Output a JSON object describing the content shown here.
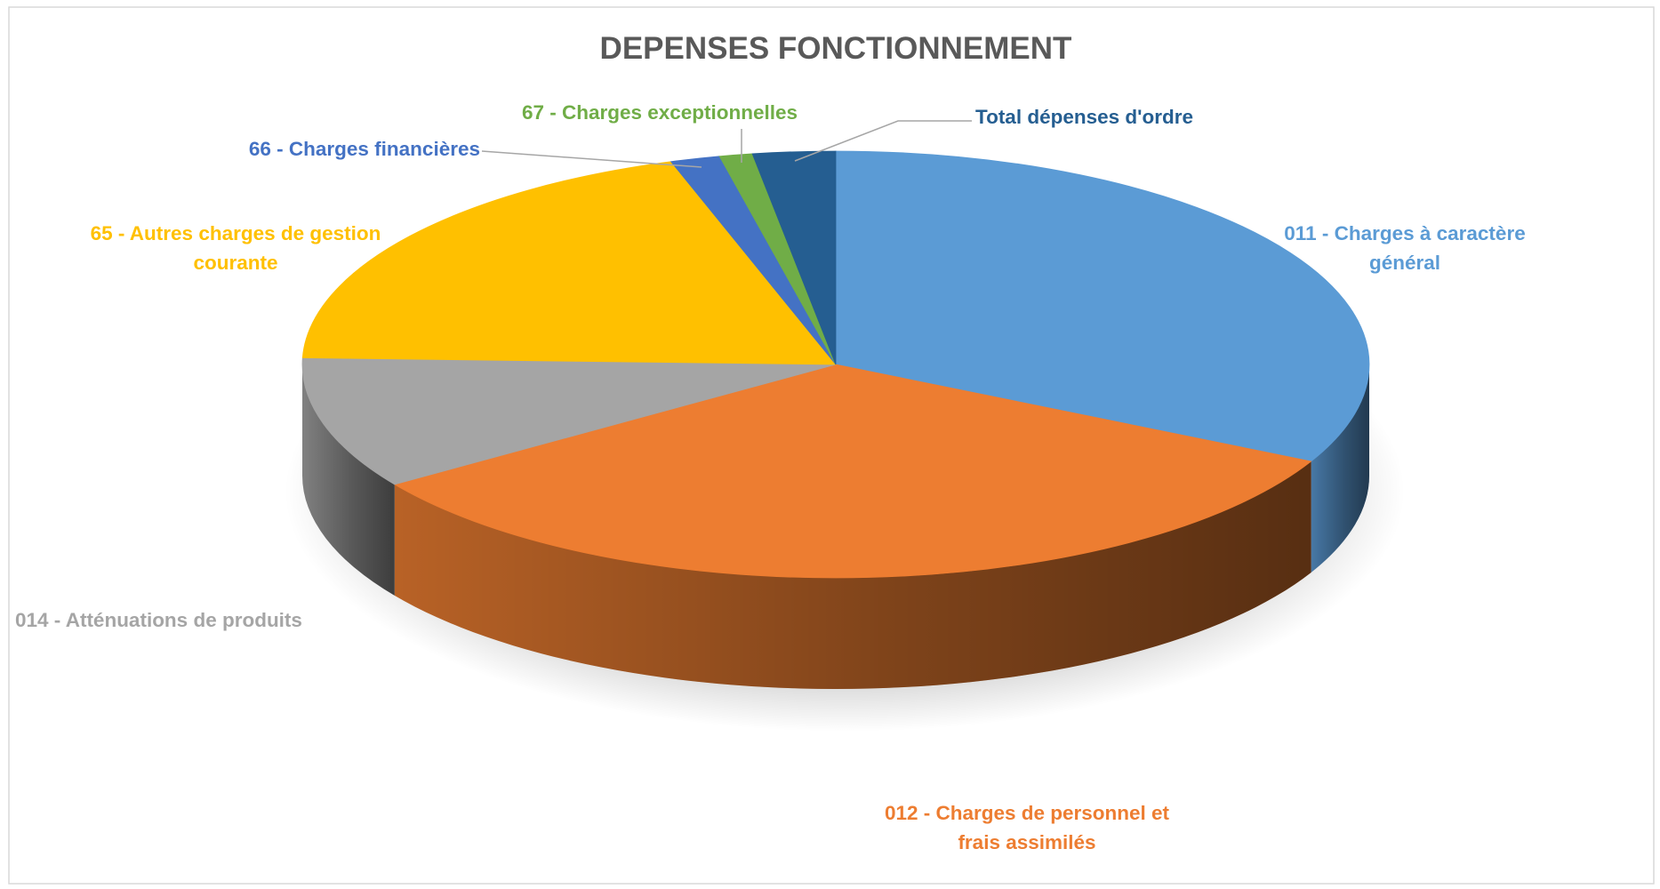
{
  "chart_data": {
    "type": "pie",
    "title": "DEPENSES FONCTIONNEMENT",
    "categories": [
      "011 - Charges à caractère général",
      "012 - Charges de personnel et frais assimilés",
      "014 - Atténuations de produits",
      "65 - Autres charges de gestion courante",
      "66 - Charges financières",
      "67 - Charges exceptionnelles",
      "Total dépenses d'ordre"
    ],
    "values": [
      32.5,
      33.0,
      10.0,
      19.5,
      1.5,
      1.0,
      2.5
    ],
    "colors": [
      "#5B9BD5",
      "#ED7D31",
      "#A5A5A5",
      "#FFC000",
      "#4472C4",
      "#70AD47",
      "#255E91"
    ],
    "label_lines": [
      [
        "011 - Charges à caractère",
        "général"
      ],
      [
        "012 - Charges de personnel et",
        "frais assimilés"
      ],
      [
        "014 - Atténuations de produits"
      ],
      [
        "65 - Autres charges de gestion",
        "courante"
      ],
      [
        "66 - Charges financières"
      ],
      [
        "67 - Charges exceptionnelles"
      ],
      [
        "Total dépenses d'ordre"
      ]
    ],
    "legend": "none",
    "style": "3d-pie"
  }
}
